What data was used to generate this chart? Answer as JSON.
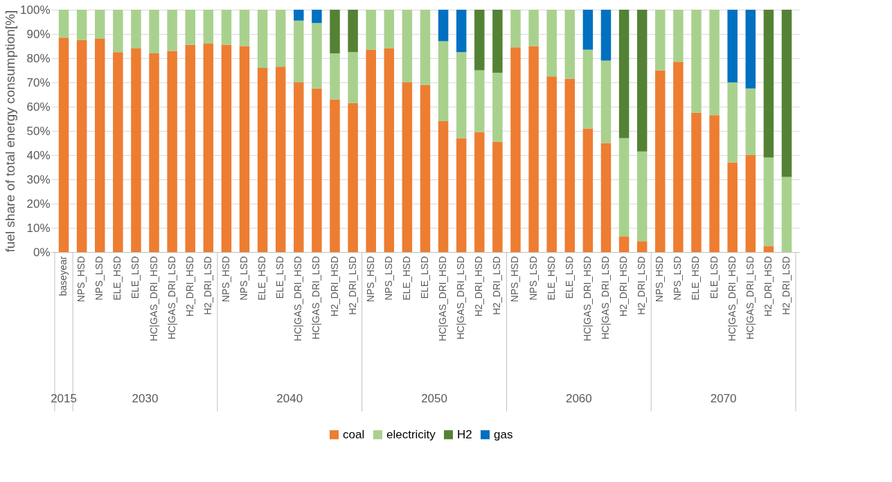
{
  "chart_data": {
    "type": "bar",
    "stacked": true,
    "ylabel": "fuel share of total energy consumption[%]",
    "categories": [
      "baseyear",
      "NPS_HSD",
      "NPS_LSD",
      "ELE_HSD",
      "ELE_LSD",
      "HC|GAS_DRI_HSD",
      "HC|GAS_DRI_LSD",
      "H2_DRI_HSD",
      "H2_DRI_LSD",
      "NPS_HSD",
      "NPS_LSD",
      "ELE_HSD",
      "ELE_LSD",
      "HC|GAS_DRI_HSD",
      "HC|GAS_DRI_LSD",
      "H2_DRI_HSD",
      "H2_DRI_LSD",
      "NPS_HSD",
      "NPS_LSD",
      "ELE_HSD",
      "ELE_LSD",
      "HC|GAS_DRI_HSD",
      "HC|GAS_DRI_LSD",
      "H2_DRI_HSD",
      "H2_DRI_LSD",
      "NPS_HSD",
      "NPS_LSD",
      "ELE_HSD",
      "ELE_LSD",
      "HC|GAS_DRI_HSD",
      "HC|GAS_DRI_LSD",
      "H2_DRI_HSD",
      "H2_DRI_LSD",
      "NPS_HSD",
      "NPS_LSD",
      "ELE_HSD",
      "ELE_LSD",
      "HC|GAS_DRI_HSD",
      "HC|GAS_DRI_LSD",
      "H2_DRI_HSD",
      "H2_DRI_LSD"
    ],
    "series": [
      {
        "name": "coal",
        "color": "#ed7d31",
        "values": [
          88.5,
          87.5,
          88,
          82.5,
          84,
          82,
          83,
          85.5,
          86,
          85.5,
          85,
          76,
          76.5,
          70,
          67.5,
          63,
          61.5,
          83.5,
          84,
          70,
          69,
          54,
          47,
          49.5,
          45.5,
          84.5,
          85,
          72.5,
          71.5,
          51,
          45,
          6.5,
          4.5,
          75,
          78.5,
          57.5,
          56.5,
          37,
          40,
          2.5,
          null
        ]
      },
      {
        "name": "electricity",
        "color": "#a9d18e",
        "values": [
          11.5,
          12.5,
          12,
          17.5,
          16,
          18,
          17,
          14.5,
          14,
          14.5,
          15,
          24,
          23.5,
          25.5,
          27,
          19,
          21,
          16.5,
          16,
          30,
          31,
          33,
          35.5,
          25.5,
          28.5,
          15.5,
          15,
          27.5,
          28.5,
          32.5,
          34,
          40.5,
          37,
          25,
          21.5,
          42.5,
          43.5,
          33,
          27.5,
          36.5,
          31
        ]
      },
      {
        "name": "H2",
        "color": "#548235",
        "values": [
          null,
          null,
          null,
          null,
          null,
          null,
          null,
          null,
          null,
          null,
          null,
          null,
          null,
          null,
          null,
          18,
          17.5,
          null,
          null,
          null,
          null,
          null,
          null,
          25,
          26,
          null,
          null,
          null,
          null,
          null,
          null,
          53,
          58.5,
          null,
          null,
          null,
          null,
          null,
          null,
          61,
          69
        ]
      },
      {
        "name": "gas",
        "color": "#0070c0",
        "values": [
          null,
          null,
          null,
          null,
          null,
          null,
          null,
          null,
          null,
          null,
          null,
          null,
          null,
          4.5,
          5.5,
          null,
          null,
          null,
          null,
          null,
          null,
          13,
          17.5,
          null,
          null,
          null,
          null,
          null,
          null,
          16.5,
          21,
          null,
          null,
          null,
          null,
          null,
          null,
          30,
          32.5,
          null,
          null
        ]
      }
    ],
    "annotations": [
      "2015",
      "2030",
      "2040",
      "2050",
      "2060",
      "2070"
    ],
    "ylim": [
      0,
      100
    ],
    "yticks": [
      {
        "value": 0,
        "label": "0%"
      },
      {
        "value": 10,
        "label": "10%"
      },
      {
        "value": 20,
        "label": "20%"
      },
      {
        "value": 30,
        "label": "30%"
      },
      {
        "value": 40,
        "label": "40%"
      },
      {
        "value": 50,
        "label": "50%"
      },
      {
        "value": 60,
        "label": "60%"
      },
      {
        "value": 70,
        "label": "70%"
      },
      {
        "value": 80,
        "label": "80%"
      },
      {
        "value": 90,
        "label": "90%"
      },
      {
        "value": 100,
        "label": "100%"
      }
    ],
    "grid": "y",
    "legend": "bottom"
  }
}
